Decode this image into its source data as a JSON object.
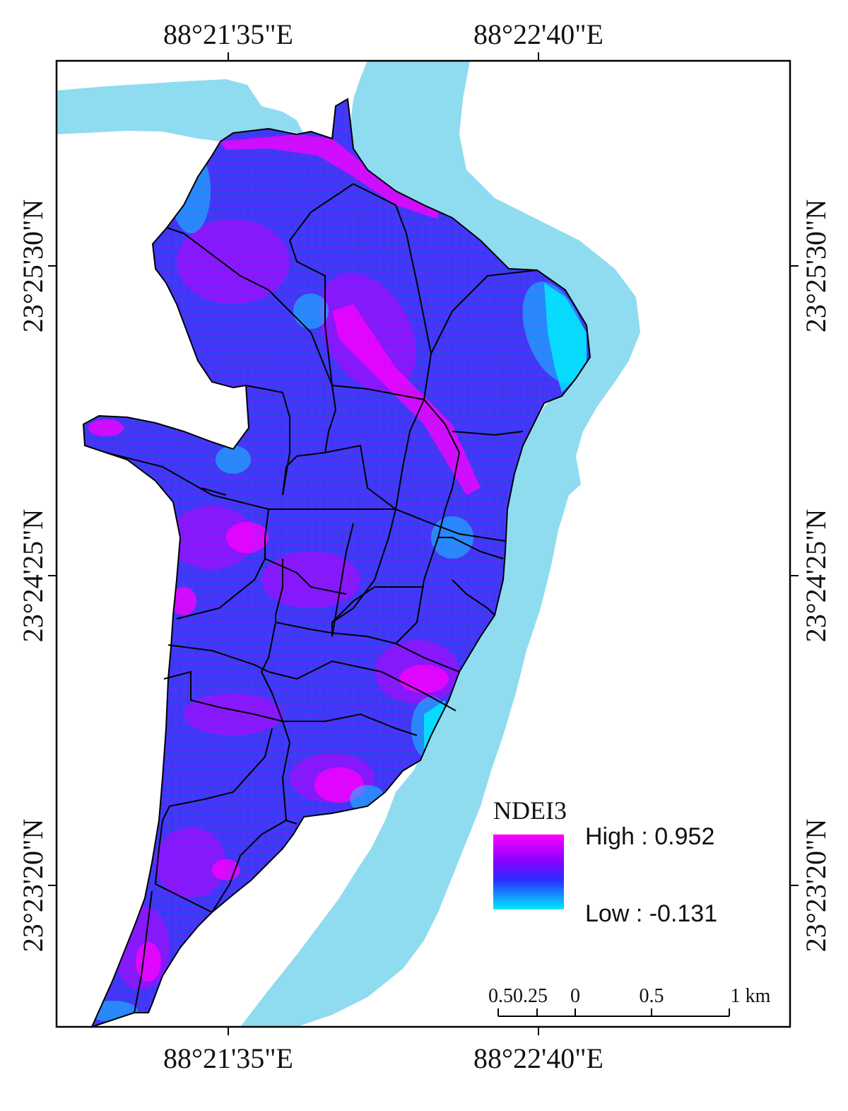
{
  "map": {
    "coordinates": {
      "top_left_lon": "88°21'35\"E",
      "top_right_lon": "88°22'40\"E",
      "bottom_left_lon": "88°21'35\"E",
      "bottom_right_lon": "88°22'40\"E",
      "left_lat_top": "23°25'30\"N",
      "left_lat_mid": "23°24'25\"N",
      "left_lat_bottom": "23°23'20\"N",
      "right_lat_top": "23°25'30\"N",
      "right_lat_mid": "23°24'25\"N",
      "right_lat_bottom": "23°23'20\"N"
    },
    "legend": {
      "title": "NDEI3",
      "high_label": "High : 0.952",
      "low_label": "Low : -0.131",
      "high_value": 0.952,
      "low_value": -0.131,
      "ramp_colors": [
        "#ff00ff",
        "#8000ff",
        "#3020ff",
        "#00e8ff"
      ]
    },
    "scale_bar": {
      "labels": [
        "0.50.25",
        "0",
        "0.5",
        "1 km"
      ]
    },
    "colors": {
      "water": "#8fdcf0",
      "frame": "#000000",
      "ward_boundary": "#000000",
      "index_high": "#ff00ff",
      "index_mid": "#3a2cff",
      "index_low": "#00e8ff"
    }
  }
}
